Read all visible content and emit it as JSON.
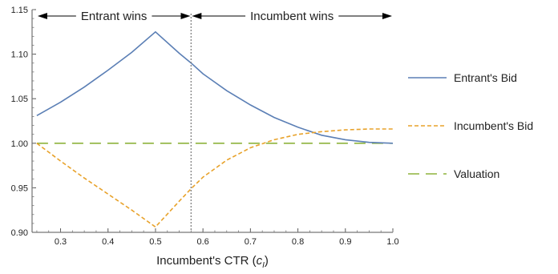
{
  "chart_data": {
    "type": "line",
    "title": "",
    "xlabel": {
      "main": "Incumbent's CTR (",
      "var": "c",
      "sub": "I",
      "tail": ")"
    },
    "ylabel": "",
    "xlim": [
      0.24,
      1.0
    ],
    "ylim": [
      0.9,
      1.15
    ],
    "x_ticks": [
      0.3,
      0.4,
      0.5,
      0.6,
      0.7,
      0.8,
      0.9,
      1.0
    ],
    "x_tick_labels": [
      "0.3",
      "0.4",
      "0.5",
      "0.6",
      "0.7",
      "0.8",
      "0.9",
      "1.0"
    ],
    "y_ticks": [
      0.9,
      0.95,
      1.0,
      1.05,
      1.1,
      1.15
    ],
    "y_tick_labels": [
      "0.90",
      "0.95",
      "1.00",
      "1.05",
      "1.10",
      "1.15"
    ],
    "grid": false,
    "legend_position": "right",
    "series": [
      {
        "name": "Entrant's Bid",
        "style": "solid",
        "color": "#5b7fb5",
        "x": [
          0.25,
          0.3,
          0.35,
          0.4,
          0.45,
          0.5,
          0.55,
          0.575,
          0.6,
          0.65,
          0.7,
          0.75,
          0.8,
          0.85,
          0.9,
          0.95,
          1.0
        ],
        "y": [
          1.031,
          1.046,
          1.063,
          1.082,
          1.102,
          1.125,
          1.101,
          1.09,
          1.078,
          1.059,
          1.043,
          1.029,
          1.018,
          1.009,
          1.004,
          1.001,
          1.0
        ]
      },
      {
        "name": "Incumbent's Bid",
        "style": "dashed",
        "color": "#e8a22a",
        "x": [
          0.25,
          0.3,
          0.35,
          0.4,
          0.45,
          0.5,
          0.55,
          0.575,
          0.6,
          0.65,
          0.7,
          0.75,
          0.8,
          0.85,
          0.9,
          0.95,
          1.0
        ],
        "y": [
          1.0,
          0.98,
          0.961,
          0.943,
          0.925,
          0.906,
          0.935,
          0.949,
          0.962,
          0.981,
          0.995,
          1.004,
          1.01,
          1.013,
          1.015,
          1.016,
          1.016
        ]
      },
      {
        "name": "Valuation",
        "style": "longdash",
        "color": "#8db33c",
        "x": [
          0.25,
          1.0
        ],
        "y": [
          1.0,
          1.0
        ]
      }
    ],
    "vertical_line": {
      "x": 0.575,
      "style": "dotted",
      "color": "#888888"
    },
    "annotations": [
      {
        "text": "Entrant wins",
        "x_range": [
          0.25,
          0.575
        ]
      },
      {
        "text": "Incumbent wins",
        "x_range": [
          0.575,
          1.0
        ]
      }
    ]
  }
}
